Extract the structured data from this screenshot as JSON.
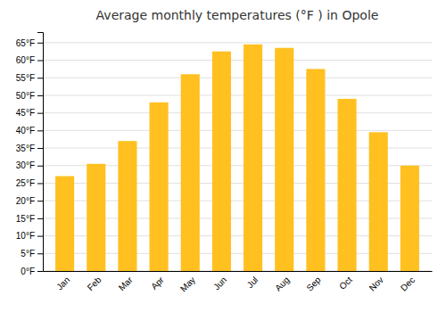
{
  "chart_data": {
    "type": "bar",
    "title": "Average monthly temperatures (°F ) in Opole",
    "categories": [
      "Jan",
      "Feb",
      "Mar",
      "Apr",
      "May",
      "Jun",
      "Jul",
      "Aug",
      "Sep",
      "Oct",
      "Nov",
      "Dec"
    ],
    "values": [
      27,
      30.5,
      37,
      48,
      56,
      62.5,
      64.5,
      63.5,
      57.5,
      49,
      39.5,
      30
    ],
    "color": "#FFC020",
    "ylim": [
      0,
      68
    ],
    "yticks": [
      {
        "value": 0,
        "label": "0°F"
      },
      {
        "value": 5,
        "label": "5°F"
      },
      {
        "value": 10,
        "label": "10°F"
      },
      {
        "value": 15,
        "label": "15°F"
      },
      {
        "value": 20,
        "label": "20°F"
      },
      {
        "value": 25,
        "label": "25°F"
      },
      {
        "value": 30,
        "label": "30°F"
      },
      {
        "value": 35,
        "label": "35°F"
      },
      {
        "value": 40,
        "label": "40°F"
      },
      {
        "value": 45,
        "label": "45°F"
      },
      {
        "value": 50,
        "label": "50°F"
      },
      {
        "value": 55,
        "label": "55°F"
      },
      {
        "value": 60,
        "label": "60°F"
      },
      {
        "value": 65,
        "label": "65°F"
      }
    ],
    "grid": true
  }
}
